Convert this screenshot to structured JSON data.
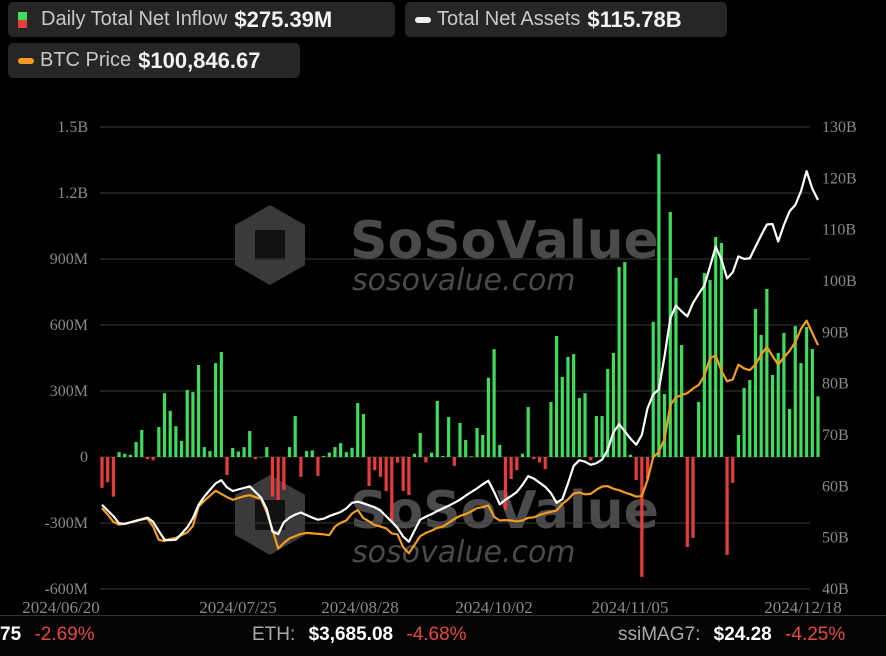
{
  "legend": {
    "inflow_label": "Daily Total Net Inflow",
    "inflow_value": "$275.39M",
    "assets_label": "Total Net Assets",
    "assets_value": "$115.78B",
    "btc_label": "BTC Price",
    "btc_value": "$100,846.67"
  },
  "watermark": {
    "brand": "SoSoValue",
    "url": "sosovalue.com"
  },
  "ticker": [
    {
      "label": "",
      "value": "75",
      "change": "-2.69%"
    },
    {
      "label": "ETH:",
      "value": "$3,685.08",
      "change": "-4.68%"
    },
    {
      "label": "ssiMAG7:",
      "value": "$24.28",
      "change": "-4.25%"
    }
  ],
  "colors": {
    "positive": "#3ddc5a",
    "negative": "#e83c3c",
    "assets_line": "#ffffff",
    "btc_line": "#f39c1f",
    "background": "#000000"
  },
  "chart_data": {
    "type": "bar+line",
    "grid": true,
    "left_axis": {
      "ticks": [
        "1.5B",
        "1.2B",
        "900M",
        "600M",
        "300M",
        "0",
        "-300M",
        "-600M"
      ],
      "range_millions": [
        -600,
        1500
      ]
    },
    "right_axis": {
      "ticks": [
        "130B",
        "120B",
        "110B",
        "100B",
        "90B",
        "80B",
        "70B",
        "60B",
        "50B",
        "40B"
      ],
      "range_billions": [
        40,
        130
      ]
    },
    "x_ticks": [
      "2024/06/20",
      "2024/07/25",
      "2024/08/28",
      "2024/10/02",
      "2024/11/05",
      "2024/12/18"
    ],
    "series": [
      {
        "name": "Daily Total Net Inflow",
        "type": "bar",
        "unit": "USD millions",
        "values": [
          -140,
          -115,
          -180,
          22,
          15,
          10,
          68,
          123,
          -10,
          -15,
          136,
          290,
          210,
          140,
          73,
          305,
          295,
          418,
          45,
          27,
          427,
          477,
          -82,
          41,
          25,
          45,
          118,
          -10,
          0,
          45,
          -180,
          -195,
          -150,
          45,
          186,
          -90,
          27,
          30,
          -86,
          5,
          20,
          45,
          63,
          22,
          42,
          245,
          195,
          -132,
          -60,
          -90,
          -155,
          -295,
          -25,
          -155,
          -173,
          15,
          109,
          -25,
          20,
          255,
          5,
          182,
          -40,
          155,
          77,
          3,
          132,
          100,
          360,
          490,
          55,
          -240,
          -100,
          -60,
          15,
          227,
          -10,
          -25,
          -55,
          250,
          550,
          364,
          455,
          468,
          268,
          290,
          -15,
          186,
          186,
          400,
          473,
          864,
          886,
          10,
          -105,
          -545,
          -100,
          614,
          1377,
          286,
          1114,
          814,
          509,
          -409,
          -368,
          250,
          836,
          805,
          1000,
          973,
          -445,
          -118,
          100,
          314,
          350,
          673,
          555,
          764,
          373,
          473,
          564,
          218,
          595,
          427,
          591,
          491,
          275.39
        ]
      },
      {
        "name": "Total Net Assets",
        "type": "line",
        "unit": "USD billions",
        "values": [
          56.4,
          55.3,
          54.2,
          52.8,
          52.7,
          53.0,
          53.3,
          53.6,
          53.9,
          53.1,
          51.3,
          49.6,
          49.5,
          49.6,
          50.8,
          52.0,
          53.8,
          56.4,
          58.0,
          59.3,
          60.6,
          61.2,
          59.8,
          59.1,
          59.4,
          59.7,
          60.0,
          58.9,
          57.8,
          55.5,
          51.2,
          50.7,
          53.0,
          53.9,
          54.5,
          54.9,
          54.4,
          53.9,
          53.5,
          53.7,
          54.2,
          54.6,
          55.0,
          55.7,
          56.8,
          57.0,
          56.7,
          56.3,
          55.9,
          55.3,
          54.2,
          53.1,
          51.9,
          50.2,
          49.2,
          51.4,
          53.5,
          54.1,
          54.6,
          55.2,
          55.7,
          56.2,
          56.8,
          57.4,
          58.2,
          58.9,
          59.6,
          60.4,
          61.1,
          58.9,
          56.5,
          57.4,
          58.1,
          58.9,
          60.3,
          62.0,
          61.5,
          60.7,
          59.9,
          58.7,
          56.8,
          57.5,
          60.6,
          64.0,
          65.1,
          64.8,
          64.2,
          64.5,
          65.2,
          67.1,
          70.5,
          72.1,
          70.7,
          69.3,
          68.1,
          70.0,
          75.2,
          77.9,
          78.9,
          85.4,
          92.7,
          95.2,
          94.1,
          93.1,
          95.7,
          97.5,
          99.1,
          102.8,
          106.7,
          104.2,
          100.5,
          101.7,
          104.8,
          104.3,
          104.4,
          106.7,
          108.9,
          111.0,
          111.1,
          107.7,
          110.9,
          113.6,
          114.8,
          117.5,
          121.4,
          118.0,
          115.78
        ]
      },
      {
        "name": "BTC Price",
        "type": "line",
        "unit": "USD",
        "values": [
          65400,
          64000,
          62400,
          61800,
          62000,
          62300,
          62600,
          62900,
          63100,
          61400,
          58500,
          58200,
          58700,
          58900,
          59500,
          60100,
          61500,
          65700,
          67000,
          68100,
          69200,
          68500,
          67800,
          67200,
          67600,
          68000,
          68200,
          67800,
          67400,
          64500,
          60700,
          56600,
          57800,
          58800,
          59300,
          59800,
          60000,
          59900,
          59800,
          59700,
          59500,
          61400,
          62200,
          62700,
          64200,
          65000,
          63200,
          62500,
          61700,
          61400,
          61000,
          59900,
          59700,
          56900,
          55600,
          57400,
          59300,
          60000,
          60500,
          61100,
          61400,
          62200,
          63000,
          63700,
          64100,
          64700,
          65400,
          65600,
          66000,
          63500,
          62700,
          62800,
          62700,
          62500,
          62700,
          63300,
          63400,
          63900,
          64300,
          64600,
          64900,
          66300,
          67300,
          68600,
          68800,
          68400,
          68500,
          69400,
          70100,
          70200,
          69600,
          69300,
          68800,
          68400,
          67900,
          68000,
          71500,
          76500,
          77600,
          80500,
          87800,
          89500,
          90000,
          90400,
          91400,
          92200,
          94200,
          98000,
          98600,
          95300,
          93000,
          93400,
          96600,
          95800,
          95400,
          96700,
          98800,
          100500,
          98500,
          96600,
          98200,
          99600,
          101500,
          104400,
          106200,
          103500,
          100846.67
        ]
      }
    ]
  }
}
